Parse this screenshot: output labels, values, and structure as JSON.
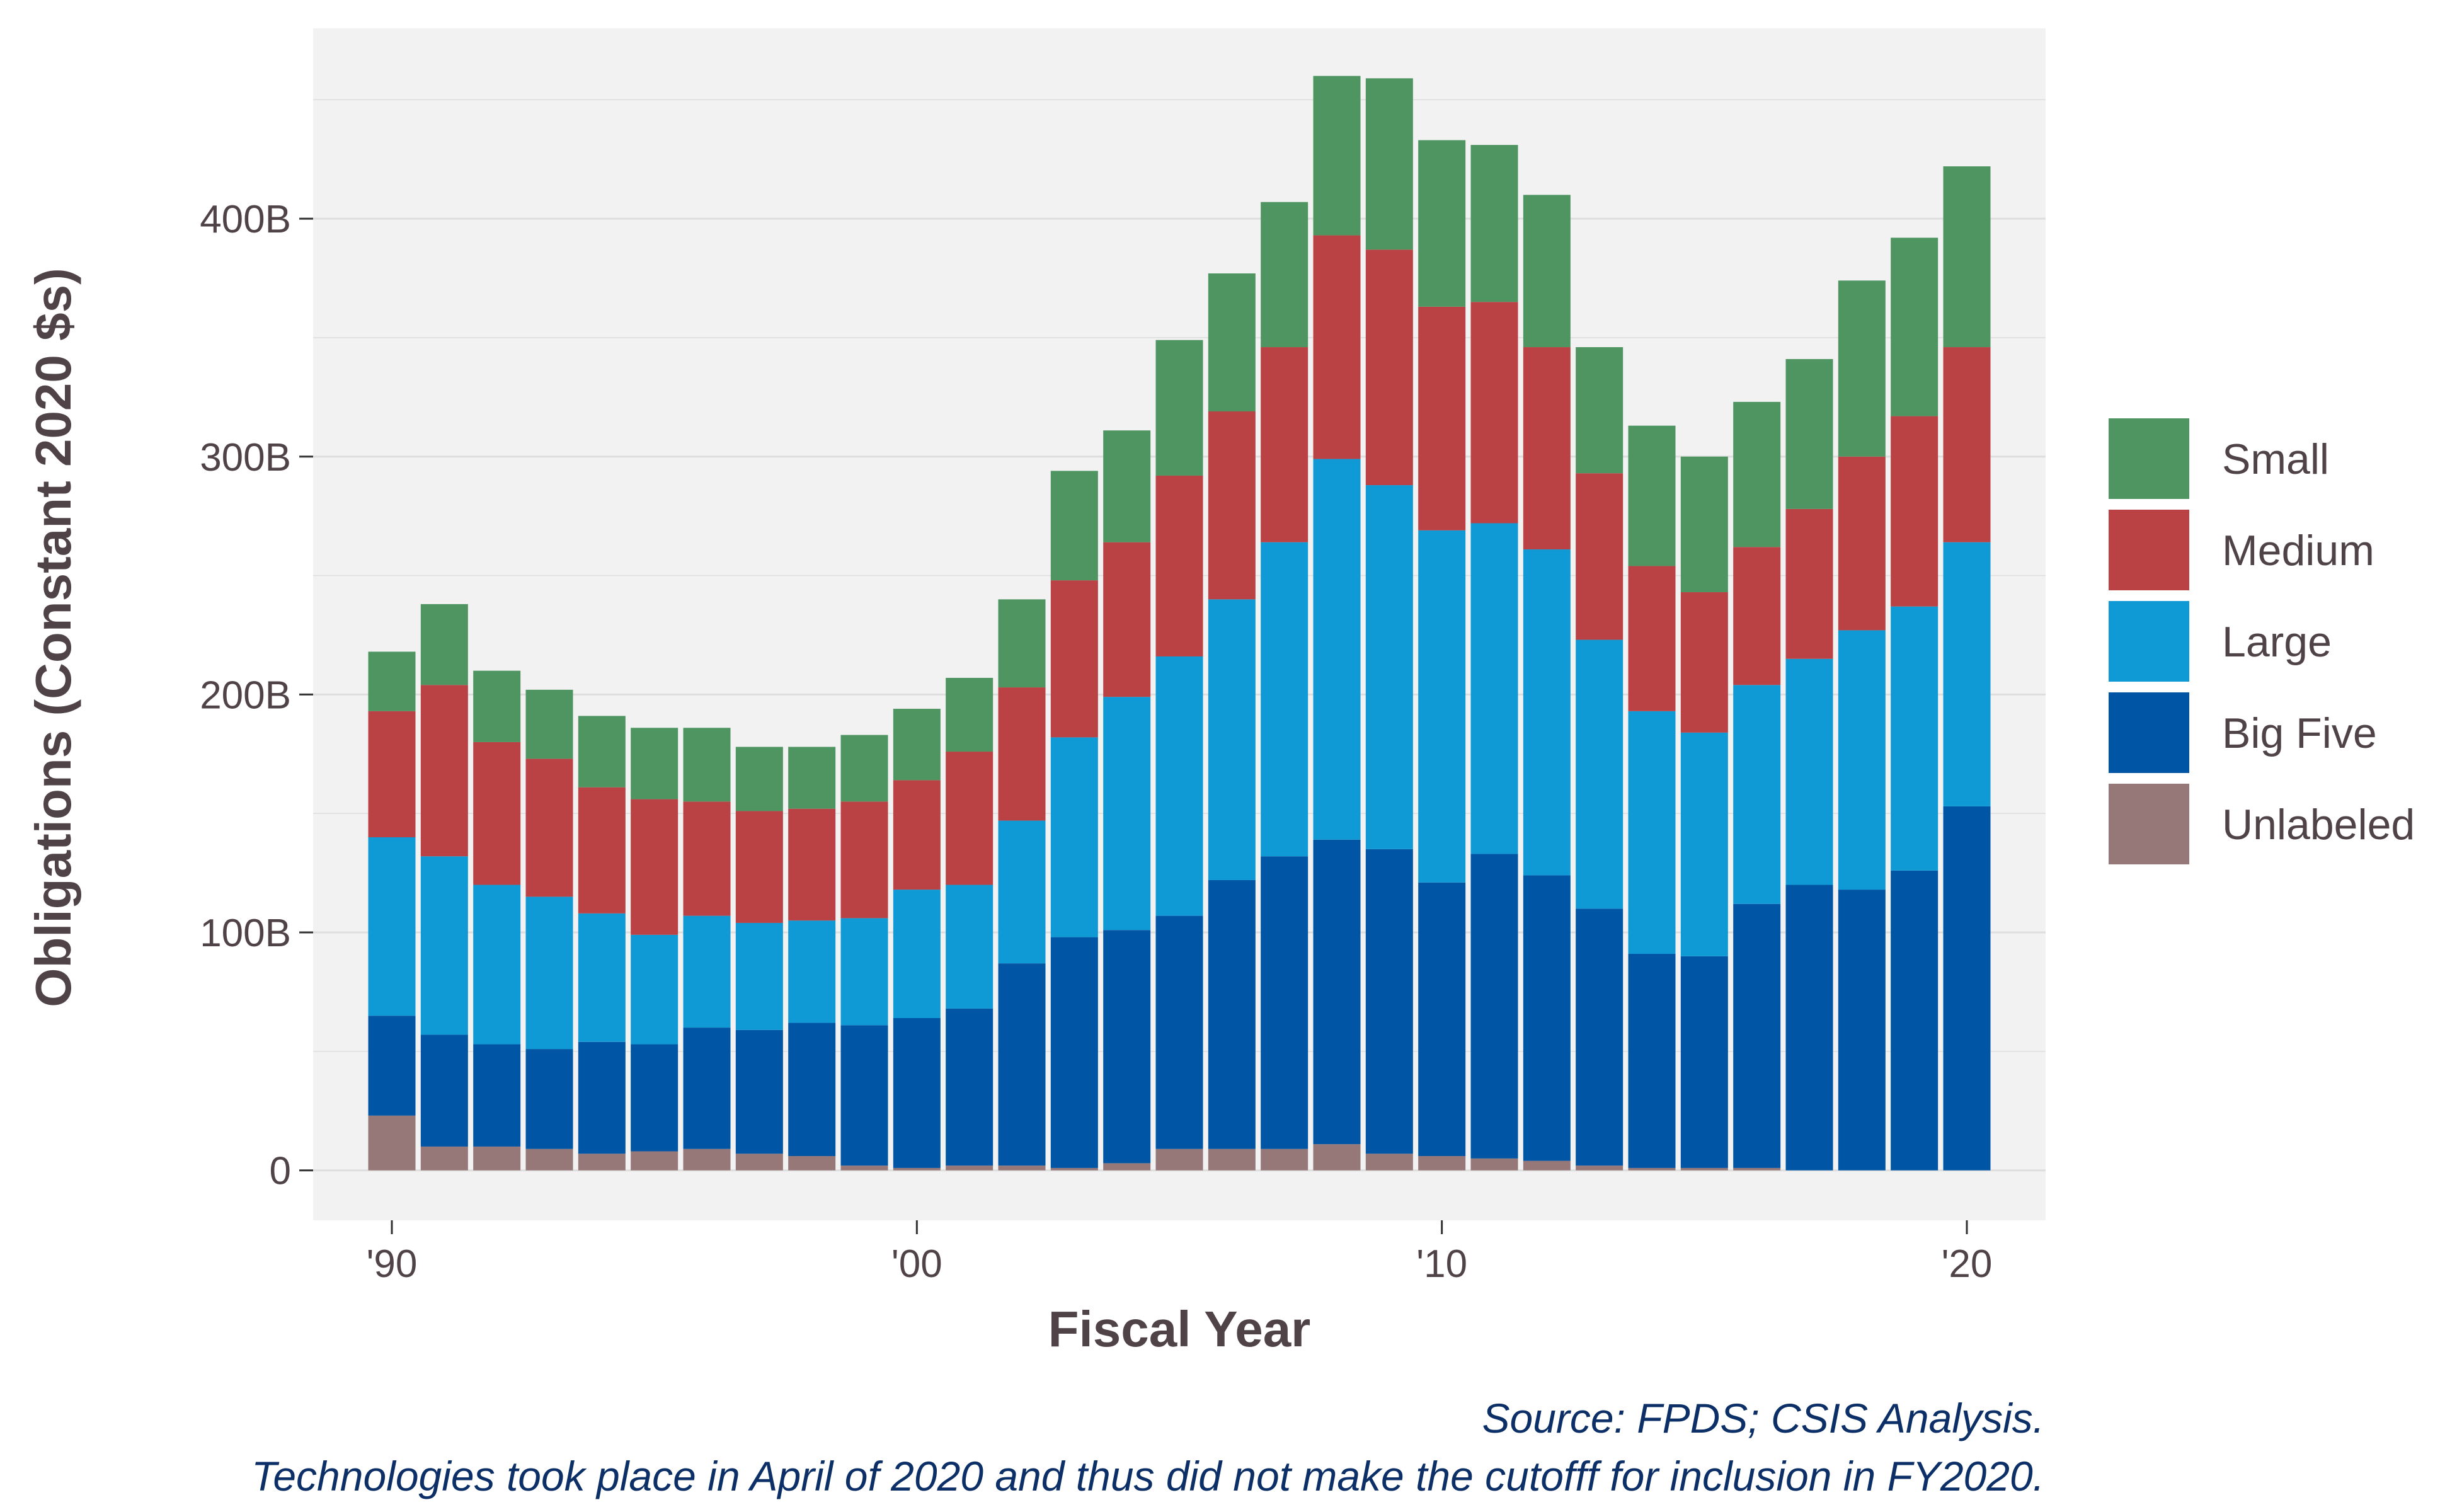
{
  "colors": {
    "panel": "#f2f2f2",
    "grid": "#dedede",
    "text": "#4f4347",
    "caption": "#0b2f66",
    "series": {
      "Unlabeled": "#967878",
      "Big Five": "#0055a5",
      "Large": "#0f9ad6",
      "Medium": "#bb4244",
      "Small": "#4e9562"
    }
  },
  "caption_lines": [
    "Source: FPDS; CSIS Analysis.",
    "Technologies took place in April of 2020 and thus did not make the cutofff for inclusion in FY2020."
  ],
  "chart_data": {
    "type": "bar",
    "stacked": true,
    "xlabel": "Fiscal Year",
    "ylabel": "Obligations (Constant 2020 $s)",
    "x": [
      1990,
      1991,
      1992,
      1993,
      1994,
      1995,
      1996,
      1997,
      1998,
      1999,
      2000,
      2001,
      2002,
      2003,
      2004,
      2005,
      2006,
      2007,
      2008,
      2009,
      2010,
      2011,
      2012,
      2013,
      2014,
      2015,
      2016,
      2017,
      2018,
      2019,
      2020
    ],
    "x_ticks": [
      {
        "value": 1990,
        "label": "'90"
      },
      {
        "value": 2000,
        "label": "'00"
      },
      {
        "value": 2010,
        "label": "'10"
      },
      {
        "value": 2020,
        "label": "'20"
      }
    ],
    "y_ticks": [
      {
        "value": 0,
        "label": "0"
      },
      {
        "value": 100,
        "label": "100B"
      },
      {
        "value": 200,
        "label": "200B"
      },
      {
        "value": 300,
        "label": "300B"
      },
      {
        "value": 400,
        "label": "400B"
      }
    ],
    "y_unit": "billions",
    "ylim": [
      -21,
      480
    ],
    "xlim": [
      1988.5,
      2021.5
    ],
    "grid": true,
    "legend_position": "right",
    "legend_order": [
      "Small",
      "Medium",
      "Large",
      "Big Five",
      "Unlabeled"
    ],
    "series": [
      {
        "name": "Unlabeled",
        "values": [
          23,
          10,
          10,
          9,
          7,
          8,
          9,
          7,
          6,
          2,
          1,
          2,
          2,
          1,
          3,
          9,
          9,
          9,
          11,
          7,
          6,
          5,
          4,
          2,
          1,
          1,
          1,
          0,
          0,
          0,
          0
        ]
      },
      {
        "name": "Big Five",
        "values": [
          42,
          47,
          43,
          42,
          47,
          45,
          51,
          52,
          56,
          59,
          63,
          66,
          85,
          97,
          98,
          98,
          113,
          123,
          128,
          128,
          115,
          128,
          120,
          108,
          90,
          89,
          111,
          120,
          118,
          126,
          153
        ]
      },
      {
        "name": "Large",
        "values": [
          75,
          75,
          67,
          64,
          54,
          46,
          47,
          45,
          43,
          45,
          54,
          52,
          60,
          84,
          98,
          109,
          118,
          132,
          160,
          153,
          148,
          139,
          137,
          113,
          102,
          94,
          92,
          95,
          109,
          111,
          111
        ]
      },
      {
        "name": "Medium",
        "values": [
          53,
          72,
          60,
          58,
          53,
          57,
          48,
          47,
          47,
          49,
          46,
          56,
          56,
          66,
          65,
          76,
          79,
          82,
          94,
          99,
          94,
          93,
          85,
          70,
          61,
          59,
          58,
          63,
          73,
          80,
          82
        ]
      },
      {
        "name": "Small",
        "values": [
          25,
          34,
          30,
          29,
          30,
          30,
          31,
          27,
          26,
          28,
          30,
          31,
          37,
          46,
          47,
          57,
          58,
          61,
          67,
          72,
          70,
          66,
          64,
          53,
          59,
          57,
          61,
          63,
          74,
          75,
          76
        ]
      }
    ]
  }
}
